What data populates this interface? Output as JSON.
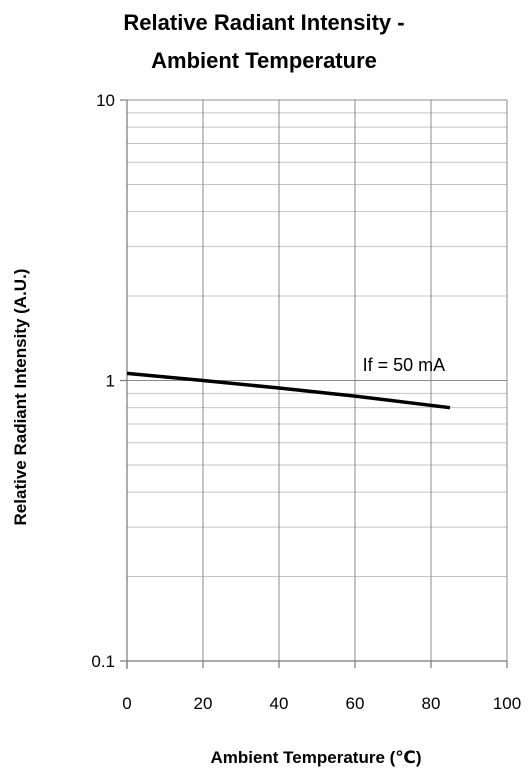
{
  "chart_data": {
    "type": "line",
    "title_line1": "Relative Radiant Intensity -",
    "title_line2": "Ambient Temperature",
    "xlabel": "Ambient Temperature (℃)",
    "ylabel": "Relative Radiant Intensity (A.U.)",
    "xlim": [
      0,
      100
    ],
    "ylim": [
      0.1,
      10
    ],
    "yscale": "log",
    "grid": true,
    "x_ticks": [
      0,
      20,
      40,
      60,
      80,
      100
    ],
    "x_tick_labels": [
      "0",
      "20",
      "40",
      "60",
      "80",
      "100"
    ],
    "y_ticks": [
      0.1,
      1,
      10
    ],
    "y_tick_labels": [
      "0.1",
      "1",
      "10"
    ],
    "series": [
      {
        "x": [
          0,
          20,
          40,
          60,
          85
        ],
        "y": [
          1.06,
          1.0,
          0.94,
          0.88,
          0.8
        ]
      }
    ],
    "annotations": [
      {
        "text": "If = 50 mA",
        "x": 62,
        "y": 1.08
      }
    ]
  }
}
